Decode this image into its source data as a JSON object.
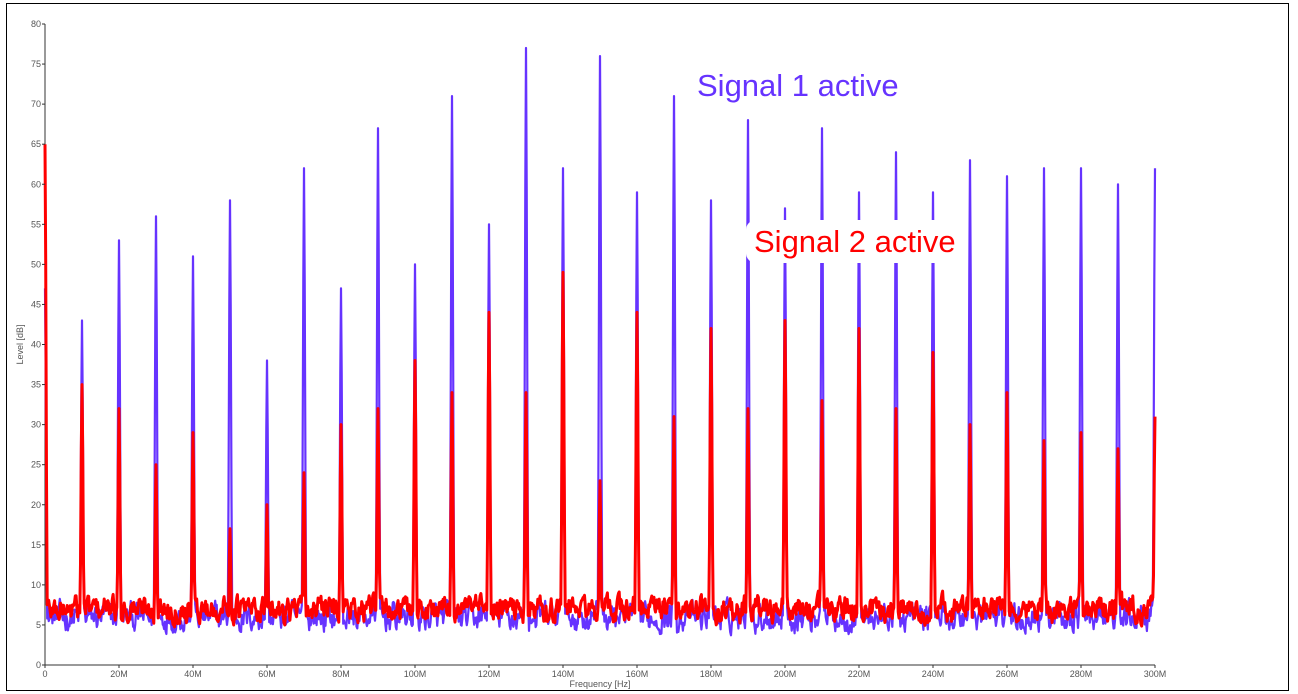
{
  "chart_data": {
    "type": "line",
    "title": "",
    "xlabel": "Frequency [Hz]",
    "ylabel": "Level [dB]",
    "xlim": [
      0,
      300
    ],
    "ylim": [
      0,
      80
    ],
    "x_unit": "MHz",
    "grid": false,
    "x_ticks": [
      0,
      20,
      40,
      60,
      80,
      100,
      120,
      140,
      160,
      180,
      200,
      220,
      240,
      260,
      280,
      300
    ],
    "x_tick_labels": [
      "0",
      "20M",
      "40M",
      "60M",
      "80M",
      "100M",
      "120M",
      "140M",
      "160M",
      "180M",
      "200M",
      "220M",
      "240M",
      "260M",
      "280M",
      "300M"
    ],
    "y_ticks": [
      0,
      5,
      10,
      15,
      20,
      25,
      30,
      35,
      40,
      45,
      50,
      55,
      60,
      65,
      70,
      75,
      80
    ],
    "annotations": [
      {
        "text": "Signal 1 active",
        "color": "#6633ff"
      },
      {
        "text": "Signal 2 active",
        "color": "#ff0000"
      }
    ],
    "series": [
      {
        "name": "Signal 1 active",
        "color": "#6633ff",
        "peaks_x": [
          0,
          10,
          20,
          30,
          40,
          50,
          60,
          70,
          80,
          90,
          100,
          110,
          120,
          130,
          140,
          150,
          160,
          170,
          180,
          190,
          200,
          210,
          220,
          230,
          240,
          250,
          260,
          270,
          280,
          290,
          300
        ],
        "peaks_y": [
          47,
          43,
          53,
          56,
          51,
          58,
          38,
          62,
          47,
          67,
          50,
          71,
          55,
          77,
          62,
          76,
          59,
          71,
          58,
          68,
          57,
          67,
          59,
          64,
          59,
          63,
          61,
          62,
          62,
          60,
          62
        ]
      },
      {
        "name": "Signal 2 active",
        "color": "#ff0000",
        "peaks_x": [
          0,
          10,
          20,
          30,
          40,
          50,
          60,
          70,
          80,
          90,
          100,
          110,
          120,
          130,
          140,
          150,
          160,
          170,
          180,
          190,
          200,
          210,
          220,
          230,
          240,
          250,
          260,
          270,
          280,
          290,
          300
        ],
        "peaks_y": [
          65,
          35,
          32,
          25,
          29,
          17,
          20,
          24,
          30,
          32,
          38,
          34,
          44,
          34,
          49,
          23,
          44,
          31,
          42,
          32,
          43,
          33,
          42,
          32,
          39,
          30,
          34,
          28,
          29,
          27,
          31
        ]
      }
    ]
  }
}
